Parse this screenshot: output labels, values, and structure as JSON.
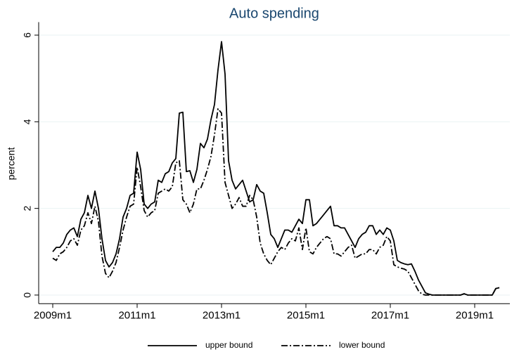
{
  "chart_data": {
    "type": "line",
    "title": "Auto spending",
    "y_label": "percent",
    "x": [
      0,
      1,
      2,
      3,
      4,
      5,
      6,
      7,
      8,
      9,
      10,
      11,
      12,
      13,
      14,
      15,
      16,
      17,
      18,
      19,
      20,
      21,
      22,
      23,
      24,
      25,
      26,
      27,
      28,
      29,
      30,
      31,
      32,
      33,
      34,
      35,
      36,
      37,
      38,
      39,
      40,
      41,
      42,
      43,
      44,
      45,
      46,
      47,
      48,
      49,
      50,
      51,
      52,
      53,
      54,
      55,
      56,
      57,
      58,
      59,
      60,
      61,
      62,
      63,
      64,
      65,
      66,
      67,
      68,
      69,
      70,
      71,
      72,
      73,
      74,
      75,
      76,
      77,
      78,
      79,
      80,
      81,
      82,
      83,
      84,
      85,
      86,
      87,
      88,
      89,
      90,
      91,
      92,
      93,
      94,
      95,
      96,
      97,
      98,
      99,
      100,
      101,
      102,
      103,
      104,
      105,
      106,
      107,
      108,
      109,
      110,
      111,
      112,
      113,
      114,
      115,
      116,
      117,
      118,
      119,
      120,
      121,
      122,
      123,
      124,
      125,
      126,
      127
    ],
    "series": [
      {
        "name": "upper bound",
        "color": "#000000",
        "dash": "solid",
        "values": [
          1.0,
          1.1,
          1.1,
          1.2,
          1.4,
          1.5,
          1.55,
          1.35,
          1.75,
          1.9,
          2.3,
          2.0,
          2.4,
          2.0,
          1.3,
          0.8,
          0.65,
          0.75,
          0.95,
          1.3,
          1.8,
          2.0,
          2.3,
          2.35,
          3.3,
          2.9,
          2.1,
          2.0,
          2.1,
          2.15,
          2.65,
          2.6,
          2.8,
          2.85,
          3.05,
          3.15,
          4.2,
          4.22,
          2.85,
          2.87,
          2.6,
          2.9,
          3.5,
          3.4,
          3.6,
          4.05,
          4.4,
          5.2,
          5.85,
          5.1,
          3.1,
          2.65,
          2.45,
          2.55,
          2.65,
          2.4,
          2.15,
          2.2,
          2.55,
          2.4,
          2.35,
          1.9,
          1.4,
          1.3,
          1.1,
          1.3,
          1.5,
          1.5,
          1.45,
          1.6,
          1.75,
          1.65,
          2.2,
          2.2,
          1.6,
          1.65,
          1.75,
          1.85,
          1.95,
          2.05,
          1.6,
          1.6,
          1.55,
          1.55,
          1.4,
          1.25,
          1.1,
          1.3,
          1.4,
          1.45,
          1.6,
          1.6,
          1.4,
          1.5,
          1.4,
          1.55,
          1.5,
          1.25,
          0.8,
          0.75,
          0.72,
          0.7,
          0.72,
          0.55,
          0.35,
          0.2,
          0.05,
          0.02,
          0,
          0,
          0,
          0,
          0,
          0,
          0,
          0,
          0,
          0.03,
          0,
          0,
          0,
          0,
          0,
          0,
          0,
          0,
          0.15,
          0.17
        ]
      },
      {
        "name": "lower bound",
        "color": "#000000",
        "dash": "dashdot",
        "values": [
          0.85,
          0.8,
          0.95,
          1.0,
          1.1,
          1.25,
          1.3,
          1.15,
          1.5,
          1.6,
          1.9,
          1.65,
          2.05,
          1.7,
          0.9,
          0.5,
          0.4,
          0.55,
          0.75,
          1.1,
          1.5,
          1.8,
          2.05,
          2.1,
          2.95,
          2.5,
          1.95,
          1.8,
          1.9,
          1.95,
          2.35,
          2.4,
          2.45,
          2.4,
          2.5,
          3.05,
          3.1,
          2.2,
          2.1,
          1.9,
          2.1,
          2.45,
          2.45,
          2.65,
          2.9,
          3.2,
          3.7,
          4.3,
          4.2,
          2.6,
          2.3,
          2.0,
          2.1,
          2.25,
          2.05,
          2.05,
          2.3,
          2.2,
          1.8,
          1.2,
          0.95,
          0.8,
          0.7,
          0.85,
          1.0,
          1.1,
          1.05,
          1.2,
          1.3,
          1.25,
          1.55,
          1.05,
          1.55,
          1.0,
          0.95,
          1.1,
          1.2,
          1.3,
          1.35,
          1.3,
          0.95,
          0.95,
          0.9,
          1.0,
          1.1,
          1.15,
          0.85,
          0.9,
          0.95,
          0.95,
          1.05,
          1.05,
          0.95,
          1.1,
          1.15,
          1.35,
          1.25,
          0.7,
          0.65,
          0.62,
          0.6,
          0.55,
          0.4,
          0.25,
          0.1,
          0.02,
          0,
          0,
          0,
          0,
          0,
          0,
          0,
          0,
          0,
          0,
          0,
          0.03,
          0,
          0,
          0,
          0,
          0,
          0,
          0,
          0,
          0.15,
          0.17
        ]
      }
    ],
    "xlim": [
      -4,
      130
    ],
    "xticks": [
      {
        "value": 0,
        "label": "2009m1"
      },
      {
        "value": 24,
        "label": "2011m1"
      },
      {
        "value": 48,
        "label": "2013m1"
      },
      {
        "value": 72,
        "label": "2015m1"
      },
      {
        "value": 96,
        "label": "2017m1"
      },
      {
        "value": 120,
        "label": "2019m1"
      }
    ],
    "ylim": [
      -0.2,
      6.3
    ],
    "yticks": [
      0,
      2,
      4,
      6
    ],
    "grid": true,
    "legend": "bottom",
    "title_color": "#1a476f"
  }
}
